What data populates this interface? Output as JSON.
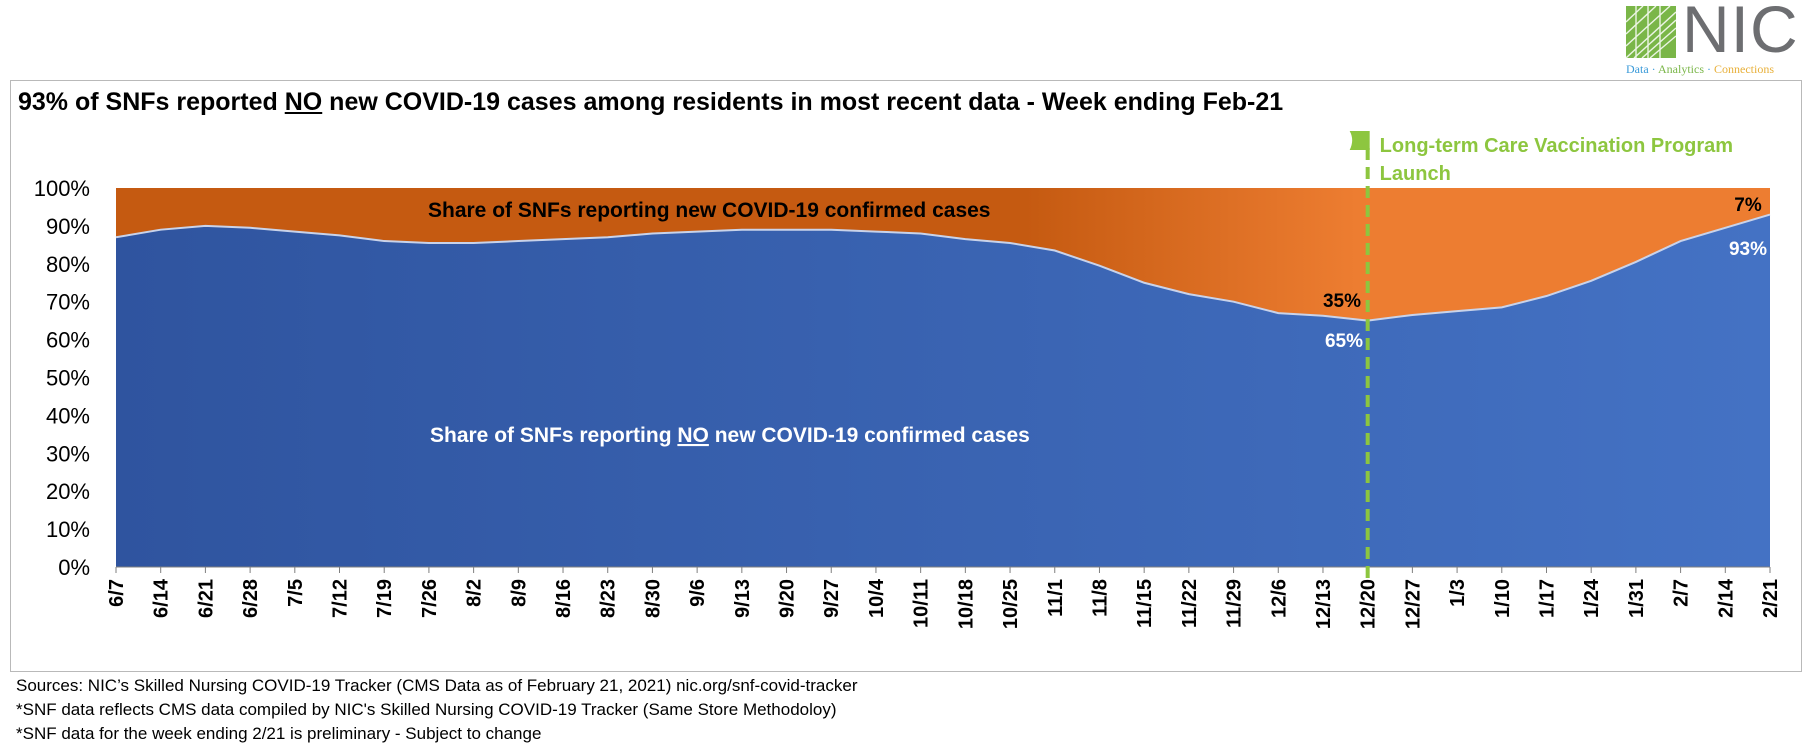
{
  "logo": {
    "name": "NIC",
    "tagline": [
      "Data",
      "Analytics",
      "Connections"
    ],
    "separator": " · "
  },
  "title": {
    "prefix": "93% of SNFs reported ",
    "emphasis": "NO",
    "suffix": " new COVID-19 cases among residents in most recent data - Week ending Feb-21"
  },
  "annotations": {
    "orange_label": "Share of SNFs reporting new COVID-19 confirmed cases",
    "blue_label_prefix": "Share of SNFs reporting ",
    "blue_label_emphasis": "NO",
    "blue_label_suffix": " new COVID-19 confirmed cases",
    "milestone_line1": "Long-term Care Vaccination Program",
    "milestone_line2": "Launch",
    "label_1220_new": "35%",
    "label_1220_no": "65%",
    "label_221_new": "7%",
    "label_221_no": "93%"
  },
  "colors": {
    "no_cases": "#3e63b5",
    "new_cases_early": "#c55a11",
    "new_cases_late": "#ed7d31",
    "milestone": "#8dc63f",
    "white_label": "#ffffff"
  },
  "chart_data": {
    "type": "area",
    "stacked": true,
    "x": [
      "6/7",
      "6/14",
      "6/21",
      "6/28",
      "7/5",
      "7/12",
      "7/19",
      "7/26",
      "8/2",
      "8/9",
      "8/16",
      "8/23",
      "8/30",
      "9/6",
      "9/13",
      "9/20",
      "9/27",
      "10/4",
      "10/11",
      "10/18",
      "10/25",
      "11/1",
      "11/8",
      "11/15",
      "11/22",
      "11/29",
      "12/6",
      "12/13",
      "12/20",
      "12/27",
      "1/3",
      "1/10",
      "1/17",
      "1/24",
      "1/31",
      "2/7",
      "2/14",
      "2/21"
    ],
    "series": [
      {
        "name": "Share of SNFs reporting NO new COVID-19 confirmed cases",
        "values": [
          87,
          89,
          90,
          89.5,
          88.5,
          87.5,
          86,
          85.5,
          85.5,
          86,
          86.5,
          87,
          88,
          88.5,
          89,
          89,
          89,
          88.5,
          88,
          86.5,
          85.5,
          83.5,
          79.5,
          75,
          72,
          70,
          67,
          66.3,
          65,
          66.5,
          67.5,
          68.5,
          71.5,
          75.5,
          80.5,
          86,
          89.5,
          93
        ]
      },
      {
        "name": "Share of SNFs reporting new COVID-19 confirmed cases",
        "values": [
          13,
          11,
          10,
          10.5,
          11.5,
          12.5,
          14,
          14.5,
          14.5,
          14,
          13.5,
          13,
          12,
          11.5,
          11,
          11,
          11,
          11.5,
          12,
          13.5,
          14.5,
          16.5,
          20.5,
          25,
          28,
          30,
          33,
          33.7,
          35,
          33.5,
          32.5,
          31.5,
          28.5,
          24.5,
          19.5,
          14,
          10.5,
          7
        ]
      }
    ],
    "y_ticks": [
      "0%",
      "10%",
      "20%",
      "30%",
      "40%",
      "50%",
      "60%",
      "70%",
      "80%",
      "90%",
      "100%"
    ],
    "ylim": [
      0,
      100
    ],
    "milestone_x": "12/20",
    "grid": false
  },
  "footer": [
    "Sources: NIC’s Skilled Nursing COVID-19 Tracker (CMS Data as of February 21, 2021)  nic.org/snf-covid-tracker",
    "*SNF data reflects CMS data compiled by NIC's Skilled Nursing COVID-19 Tracker (Same Store Methodoloy)",
    "*SNF data for the week ending 2/21 is preliminary - Subject to change"
  ]
}
